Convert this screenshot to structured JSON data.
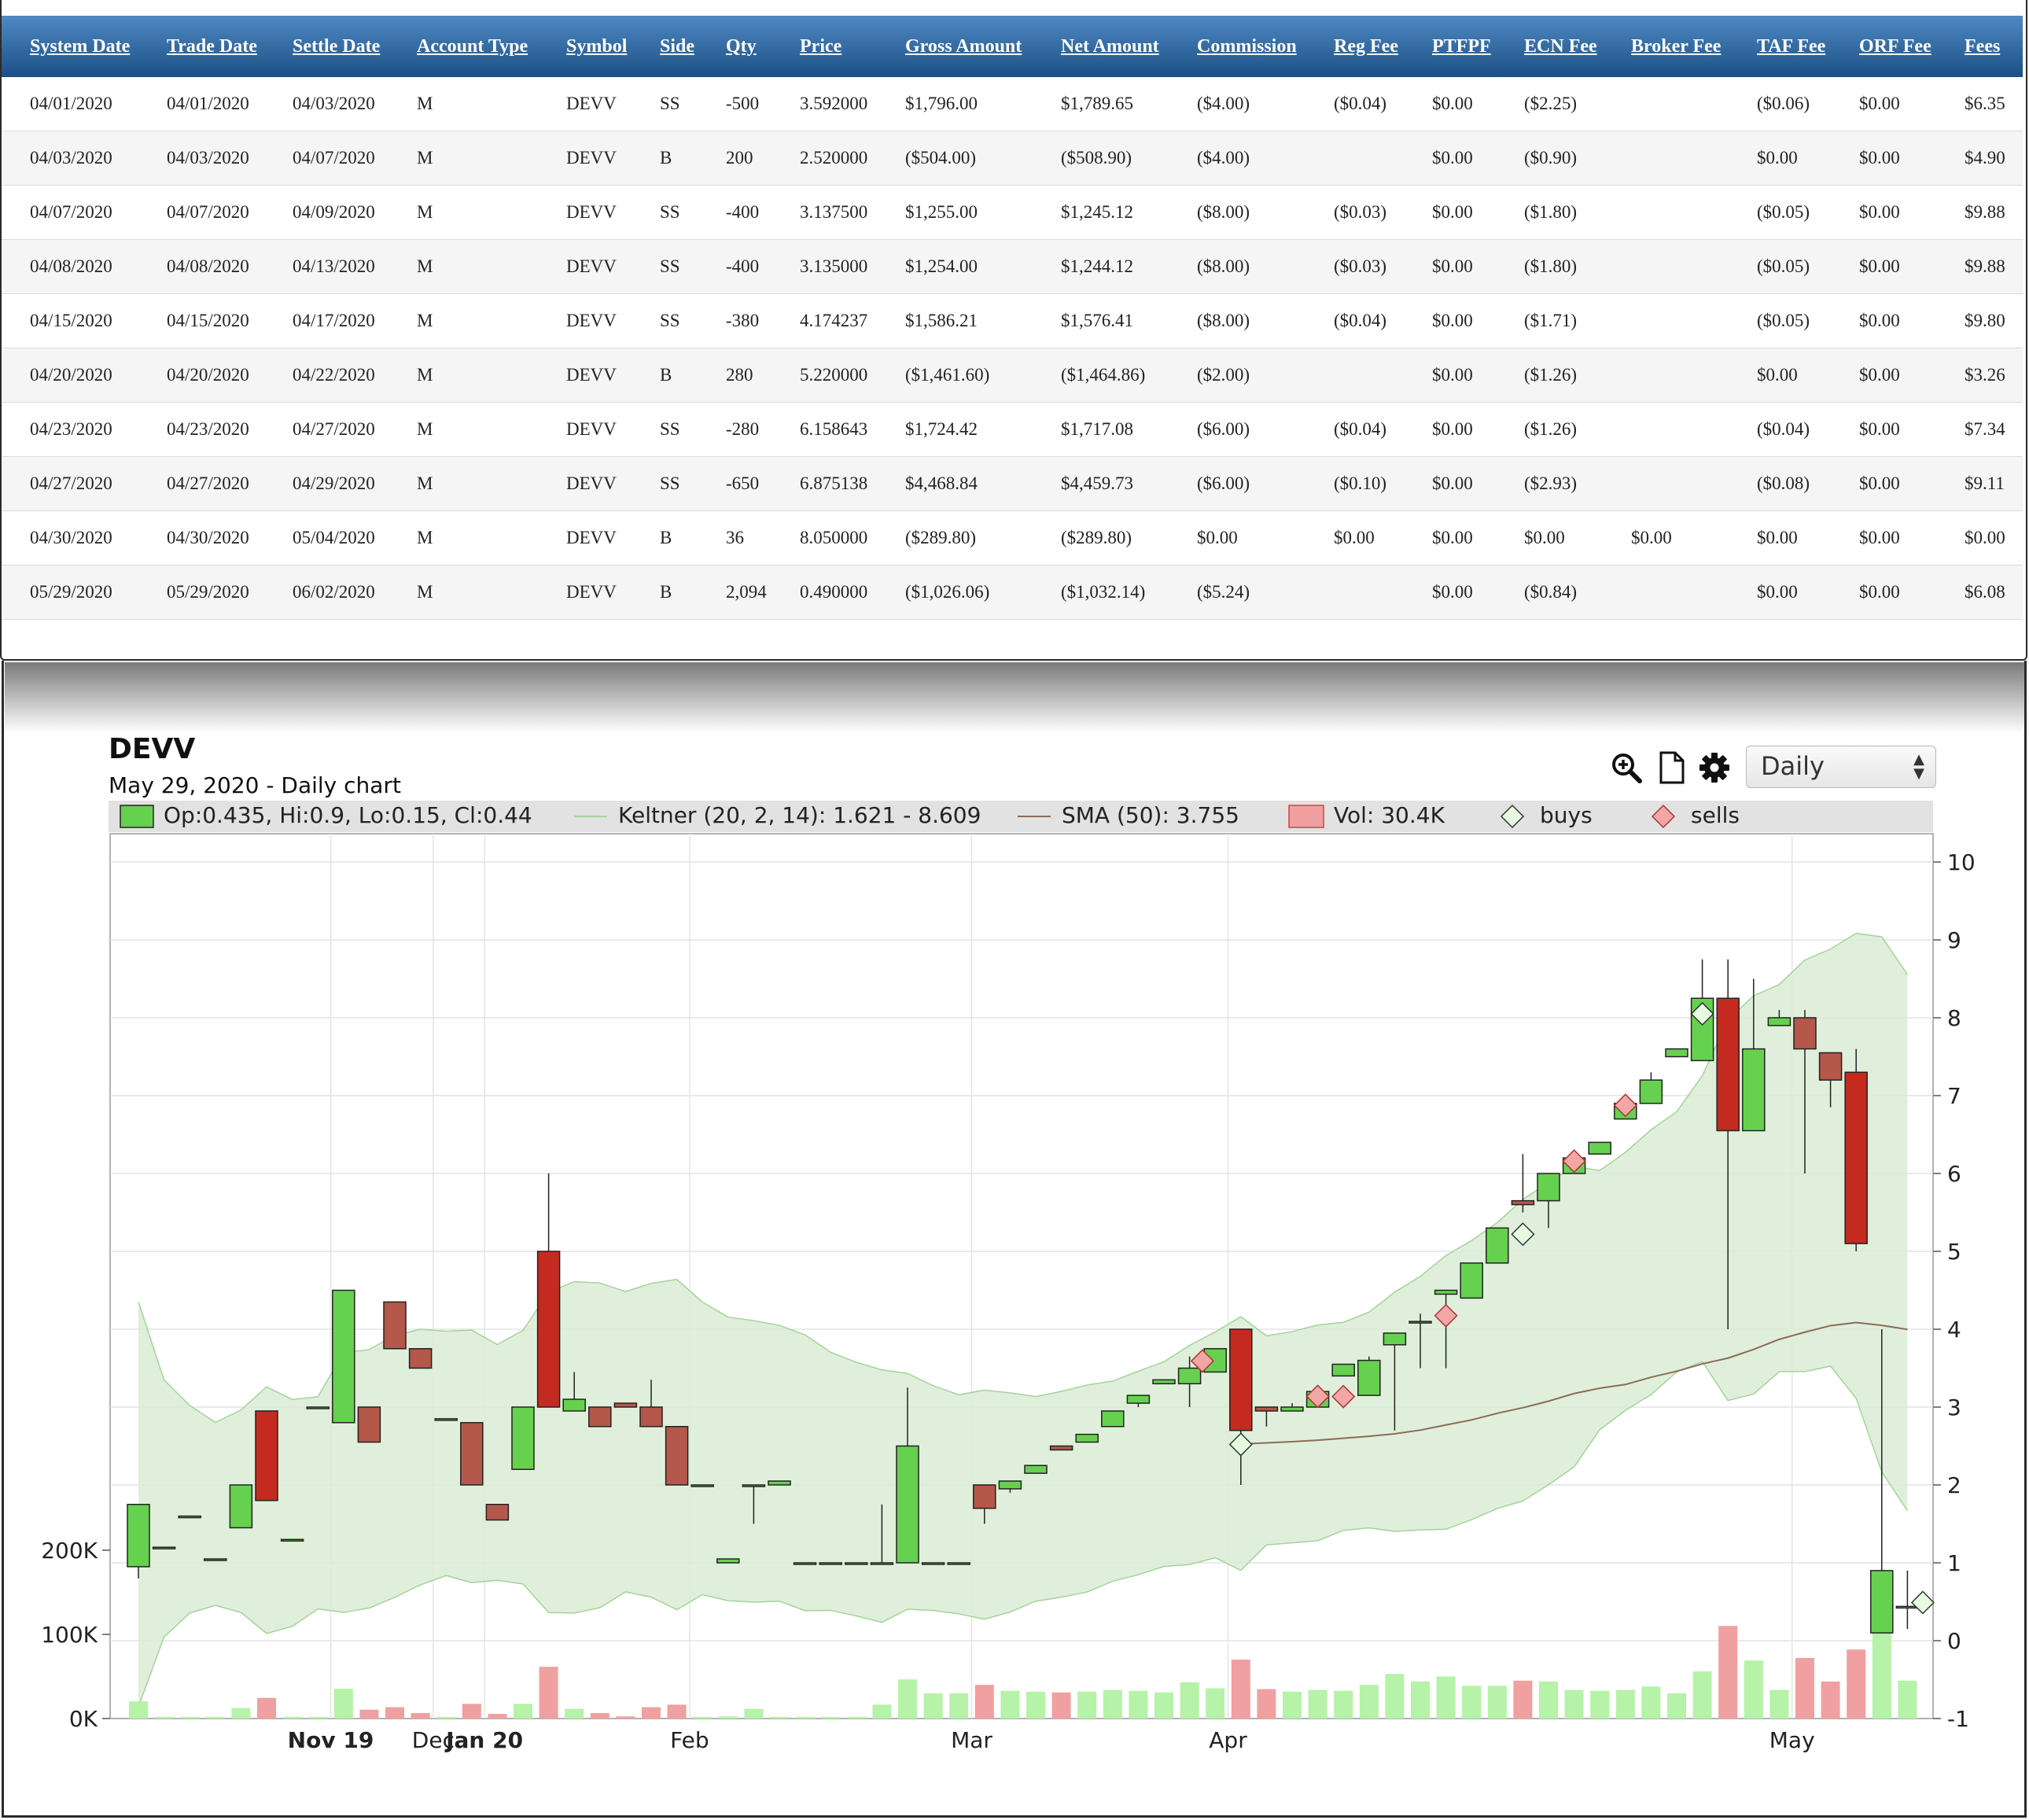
{
  "trades": {
    "columns": [
      "System Date",
      "Trade Date",
      "Settle Date",
      "Account Type",
      "Symbol",
      "Side",
      "Qty",
      "Price",
      "Gross Amount",
      "Net Amount",
      "Commission",
      "Reg Fee",
      "PTFPF",
      "ECN Fee",
      "Broker Fee",
      "TAF Fee",
      "ORF Fee",
      "Fees"
    ],
    "rows": [
      [
        "04/01/2020",
        "04/01/2020",
        "04/03/2020",
        "M",
        "DEVV",
        "SS",
        "-500",
        "3.592000",
        "$1,796.00",
        "$1,789.65",
        "($4.00)",
        "($0.04)",
        "$0.00",
        "($2.25)",
        "",
        "($0.06)",
        "$0.00",
        "$6.35"
      ],
      [
        "04/03/2020",
        "04/03/2020",
        "04/07/2020",
        "M",
        "DEVV",
        "B",
        "200",
        "2.520000",
        "($504.00)",
        "($508.90)",
        "($4.00)",
        "",
        "$0.00",
        "($0.90)",
        "",
        "$0.00",
        "$0.00",
        "$4.90"
      ],
      [
        "04/07/2020",
        "04/07/2020",
        "04/09/2020",
        "M",
        "DEVV",
        "SS",
        "-400",
        "3.137500",
        "$1,255.00",
        "$1,245.12",
        "($8.00)",
        "($0.03)",
        "$0.00",
        "($1.80)",
        "",
        "($0.05)",
        "$0.00",
        "$9.88"
      ],
      [
        "04/08/2020",
        "04/08/2020",
        "04/13/2020",
        "M",
        "DEVV",
        "SS",
        "-400",
        "3.135000",
        "$1,254.00",
        "$1,244.12",
        "($8.00)",
        "($0.03)",
        "$0.00",
        "($1.80)",
        "",
        "($0.05)",
        "$0.00",
        "$9.88"
      ],
      [
        "04/15/2020",
        "04/15/2020",
        "04/17/2020",
        "M",
        "DEVV",
        "SS",
        "-380",
        "4.174237",
        "$1,586.21",
        "$1,576.41",
        "($8.00)",
        "($0.04)",
        "$0.00",
        "($1.71)",
        "",
        "($0.05)",
        "$0.00",
        "$9.80"
      ],
      [
        "04/20/2020",
        "04/20/2020",
        "04/22/2020",
        "M",
        "DEVV",
        "B",
        "280",
        "5.220000",
        "($1,461.60)",
        "($1,464.86)",
        "($2.00)",
        "",
        "$0.00",
        "($1.26)",
        "",
        "$0.00",
        "$0.00",
        "$3.26"
      ],
      [
        "04/23/2020",
        "04/23/2020",
        "04/27/2020",
        "M",
        "DEVV",
        "SS",
        "-280",
        "6.158643",
        "$1,724.42",
        "$1,717.08",
        "($6.00)",
        "($0.04)",
        "$0.00",
        "($1.26)",
        "",
        "($0.04)",
        "$0.00",
        "$7.34"
      ],
      [
        "04/27/2020",
        "04/27/2020",
        "04/29/2020",
        "M",
        "DEVV",
        "SS",
        "-650",
        "6.875138",
        "$4,468.84",
        "$4,459.73",
        "($6.00)",
        "($0.10)",
        "$0.00",
        "($2.93)",
        "",
        "($0.08)",
        "$0.00",
        "$9.11"
      ],
      [
        "04/30/2020",
        "04/30/2020",
        "05/04/2020",
        "M",
        "DEVV",
        "B",
        "36",
        "8.050000",
        "($289.80)",
        "($289.80)",
        "$0.00",
        "$0.00",
        "$0.00",
        "$0.00",
        "$0.00",
        "$0.00",
        "$0.00",
        "$0.00"
      ],
      [
        "05/29/2020",
        "05/29/2020",
        "06/02/2020",
        "M",
        "DEVV",
        "B",
        "2,094",
        "0.490000",
        "($1,026.06)",
        "($1,032.14)",
        "($5.24)",
        "",
        "$0.00",
        "($0.84)",
        "",
        "$0.00",
        "$0.00",
        "$6.08"
      ]
    ]
  },
  "chart": {
    "title": "DEVV",
    "subtitle": "May 29, 2020 - Daily chart",
    "period": "Daily",
    "icons": [
      "zoom-in-icon",
      "document-icon",
      "gear-icon"
    ],
    "legend": {
      "ohlc": "Op:0.435, Hi:0.9, Lo:0.15, Cl:0.44",
      "keltner": "Keltner (20, 2, 14): 1.621 - 8.609",
      "sma": "SMA (50): 3.755",
      "vol": "Vol: 30.4K",
      "buys": "buys",
      "sells": "sells"
    },
    "colors": {
      "up": "#66d14f",
      "down_dark": "#c42a20",
      "down": "#b5574a",
      "band": "#d9ecd5",
      "band_line": "#a6d39b",
      "sma": "#8c6b55",
      "vol_up": "#b6f2a8",
      "vol_down": "#f0a0a0",
      "buy_fill": "#e6fbe0",
      "sell_fill": "#f2a6a6",
      "header_top": "#4f89c3",
      "header_bottom": "#1c4f85"
    }
  },
  "chart_data": {
    "type": "candlestick",
    "title": "DEVV",
    "subtitle": "May 29, 2020 - Daily chart",
    "price_axis": {
      "ticks": [
        "10",
        "9",
        "8",
        "7",
        "6",
        "5",
        "4",
        "3",
        "2",
        "1",
        "0",
        "-1"
      ],
      "range": [
        -1,
        10
      ],
      "side": "right"
    },
    "volume_axis": {
      "ticks": [
        "200K",
        "100K",
        "0K"
      ],
      "range": [
        0,
        200000
      ],
      "side": "left"
    },
    "x_labels": [
      {
        "label": "Nov 19",
        "bold": true,
        "bar": 7.5
      },
      {
        "label": "Dec",
        "bold": false,
        "bar": 11.5
      },
      {
        "label": "Jan 20",
        "bold": true,
        "bar": 13.5
      },
      {
        "label": "Feb",
        "bold": false,
        "bar": 21.5
      },
      {
        "label": "Mar",
        "bold": false,
        "bar": 32.5
      },
      {
        "label": "Apr",
        "bold": false,
        "bar": 42.5
      },
      {
        "label": "May",
        "bold": false,
        "bar": 64.5
      }
    ],
    "bars": [
      [
        0.95,
        1.75,
        0.8,
        1.75
      ],
      [
        1.2,
        1.2,
        1.2,
        1.2
      ],
      [
        1.6,
        1.6,
        1.6,
        1.6
      ],
      [
        1.05,
        1.05,
        1.05,
        1.05
      ],
      [
        1.45,
        2.0,
        1.45,
        2.0
      ],
      [
        2.95,
        2.95,
        1.8,
        1.8
      ],
      [
        1.3,
        1.3,
        1.3,
        1.3
      ],
      [
        3.0,
        3.0,
        3.0,
        3.0
      ],
      [
        2.8,
        4.5,
        2.8,
        4.5
      ],
      [
        3.0,
        3.0,
        2.55,
        2.55
      ],
      [
        4.35,
        4.35,
        3.75,
        3.75
      ],
      [
        3.75,
        3.75,
        3.5,
        3.5
      ],
      [
        2.85,
        2.85,
        2.85,
        2.85
      ],
      [
        2.8,
        2.8,
        2.0,
        2.0
      ],
      [
        1.75,
        1.75,
        1.55,
        1.55
      ],
      [
        2.2,
        3.0,
        2.2,
        3.0
      ],
      [
        5.0,
        6.0,
        3.0,
        3.0
      ],
      [
        2.95,
        3.45,
        2.95,
        3.1
      ],
      [
        3.0,
        3.0,
        2.75,
        2.75
      ],
      [
        3.05,
        3.05,
        3.0,
        3.0
      ],
      [
        3.0,
        3.35,
        2.75,
        2.75
      ],
      [
        2.75,
        2.75,
        2.0,
        2.0
      ],
      [
        2.0,
        2.0,
        2.0,
        2.0
      ],
      [
        1.0,
        1.05,
        1.0,
        1.05
      ],
      [
        2.0,
        2.0,
        1.5,
        2.0
      ],
      [
        2.0,
        2.0,
        2.0,
        2.05
      ],
      [
        1.0,
        1.0,
        1.0,
        1.0
      ],
      [
        1.0,
        1.0,
        1.0,
        1.0
      ],
      [
        1.0,
        1.0,
        1.0,
        1.0
      ],
      [
        1.0,
        1.75,
        1.0,
        1.0
      ],
      [
        1.0,
        3.25,
        1.0,
        2.5
      ],
      [
        1.0,
        1.0,
        1.0,
        1.0
      ],
      [
        1.0,
        1.0,
        1.0,
        1.0
      ],
      [
        2.0,
        2.0,
        1.5,
        1.7
      ],
      [
        1.95,
        2.05,
        1.9,
        2.05
      ],
      [
        2.15,
        2.25,
        2.15,
        2.25
      ],
      [
        2.5,
        2.5,
        2.45,
        2.45
      ],
      [
        2.55,
        2.65,
        2.55,
        2.65
      ],
      [
        2.75,
        2.95,
        2.75,
        2.95
      ],
      [
        3.05,
        3.15,
        3.0,
        3.15
      ],
      [
        3.3,
        3.35,
        3.3,
        3.35
      ],
      [
        3.3,
        3.65,
        3.0,
        3.5
      ],
      [
        3.45,
        3.75,
        3.45,
        3.75
      ],
      [
        4.0,
        4.0,
        2.0,
        2.7
      ],
      [
        3.0,
        3.0,
        2.75,
        2.95
      ],
      [
        2.95,
        3.05,
        2.95,
        3.0
      ],
      [
        3.0,
        3.2,
        3.0,
        3.2
      ],
      [
        3.4,
        3.55,
        3.4,
        3.55
      ],
      [
        3.15,
        3.65,
        3.15,
        3.6
      ],
      [
        3.8,
        3.85,
        2.7,
        3.95
      ],
      [
        4.1,
        4.2,
        3.5,
        4.1
      ],
      [
        4.45,
        4.5,
        3.5,
        4.5
      ],
      [
        4.4,
        4.85,
        4.4,
        4.85
      ],
      [
        4.85,
        5.3,
        4.85,
        5.3
      ],
      [
        5.65,
        6.25,
        5.5,
        5.6
      ],
      [
        5.65,
        6.0,
        5.3,
        6.0
      ],
      [
        6.0,
        6.2,
        6.0,
        6.2
      ],
      [
        6.25,
        6.4,
        6.25,
        6.4
      ],
      [
        6.7,
        6.9,
        6.7,
        6.9
      ],
      [
        6.9,
        7.3,
        6.9,
        7.2
      ],
      [
        7.5,
        7.5,
        7.5,
        7.6
      ],
      [
        7.45,
        8.75,
        7.45,
        8.25
      ],
      [
        8.25,
        8.75,
        4.0,
        6.55
      ],
      [
        6.55,
        8.5,
        6.55,
        7.6
      ],
      [
        7.9,
        8.1,
        7.9,
        8.0
      ],
      [
        8.0,
        8.1,
        6.0,
        7.6
      ],
      [
        7.55,
        7.55,
        6.85,
        7.2
      ],
      [
        7.3,
        7.6,
        5.0,
        5.1
      ],
      [
        0.1,
        4.0,
        0.1,
        0.9
      ],
      [
        0.435,
        0.9,
        0.15,
        0.44
      ]
    ],
    "trades": [
      {
        "side": "sell",
        "bar": 41.5,
        "price": 3.592
      },
      {
        "side": "buy",
        "bar": 43,
        "price": 2.52
      },
      {
        "side": "sell",
        "bar": 46,
        "price": 3.1375
      },
      {
        "side": "sell",
        "bar": 47,
        "price": 3.135
      },
      {
        "side": "sell",
        "bar": 51,
        "price": 4.174
      },
      {
        "side": "buy",
        "bar": 54,
        "price": 5.22
      },
      {
        "side": "sell",
        "bar": 56,
        "price": 6.159
      },
      {
        "side": "sell",
        "bar": 58,
        "price": 6.875
      },
      {
        "side": "buy",
        "bar": 61,
        "price": 8.05
      },
      {
        "side": "buy",
        "bar": 69.6,
        "price": 0.49
      }
    ]
  }
}
